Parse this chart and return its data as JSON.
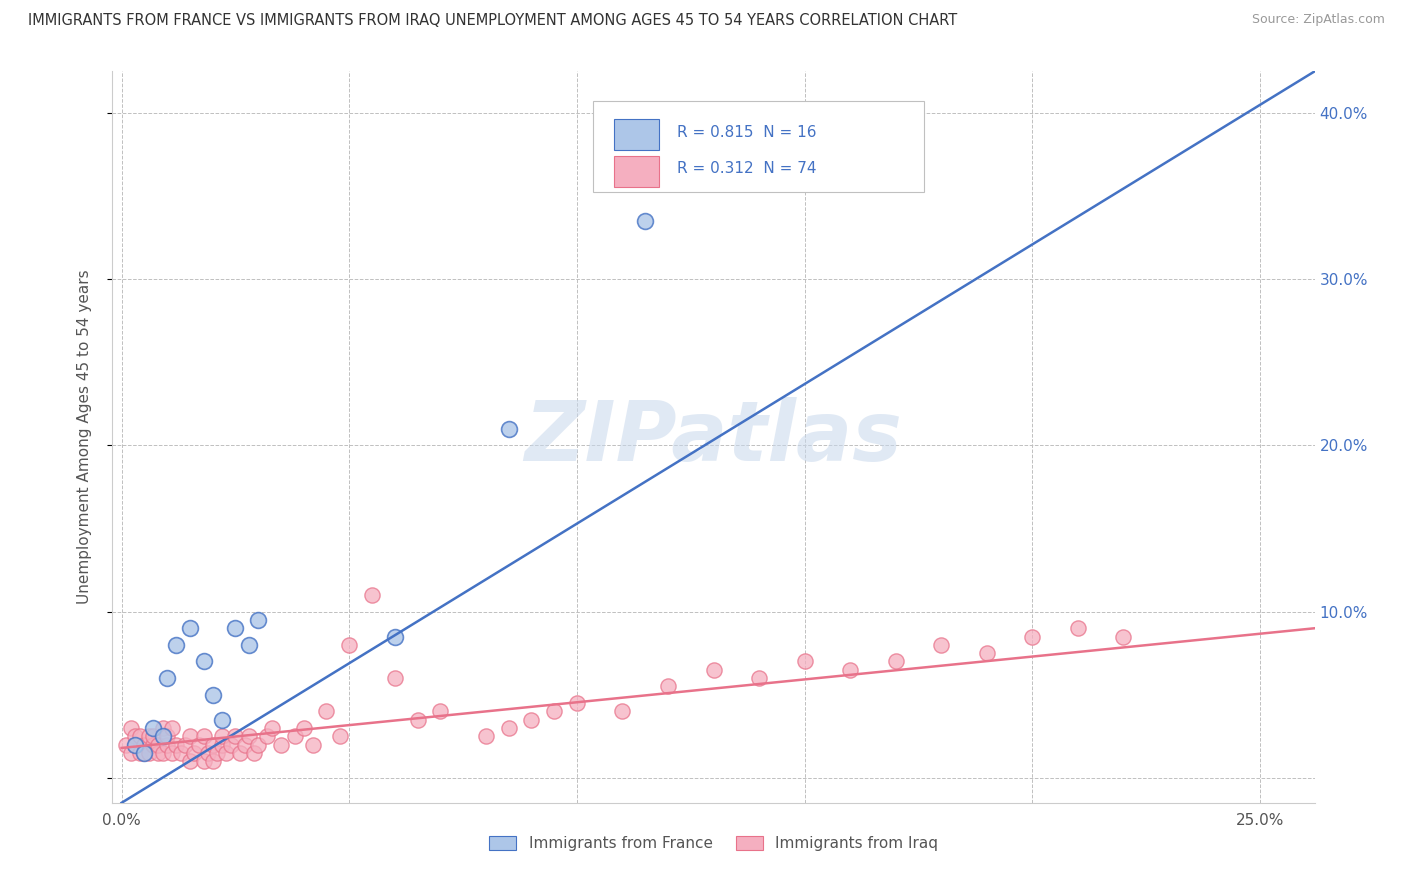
{
  "title": "IMMIGRANTS FROM FRANCE VS IMMIGRANTS FROM IRAQ UNEMPLOYMENT AMONG AGES 45 TO 54 YEARS CORRELATION CHART",
  "source": "Source: ZipAtlas.com",
  "ylabel": "Unemployment Among Ages 45 to 54 years",
  "xlim": [
    -0.002,
    0.262
  ],
  "ylim": [
    -0.015,
    0.425
  ],
  "france_R": 0.815,
  "france_N": 16,
  "iraq_R": 0.312,
  "iraq_N": 74,
  "france_color": "#adc6e8",
  "iraq_color": "#f5afc0",
  "france_line_color": "#4472c4",
  "iraq_line_color": "#e8728a",
  "france_edge_color": "#4472c4",
  "iraq_edge_color": "#e8728a",
  "legend_france": "Immigrants from France",
  "legend_iraq": "Immigrants from Iraq",
  "france_trend_x": [
    0.0,
    0.262
  ],
  "france_trend_y": [
    -0.015,
    0.425
  ],
  "iraq_trend_x": [
    0.0,
    0.262
  ],
  "iraq_trend_y": [
    0.018,
    0.09
  ],
  "france_scatter_x": [
    0.003,
    0.005,
    0.007,
    0.009,
    0.01,
    0.012,
    0.015,
    0.018,
    0.02,
    0.022,
    0.025,
    0.028,
    0.03,
    0.115,
    0.085,
    0.06
  ],
  "france_scatter_y": [
    0.02,
    0.015,
    0.03,
    0.025,
    0.06,
    0.08,
    0.09,
    0.07,
    0.05,
    0.035,
    0.09,
    0.08,
    0.095,
    0.335,
    0.21,
    0.085
  ],
  "iraq_scatter_x": [
    0.001,
    0.002,
    0.002,
    0.003,
    0.003,
    0.004,
    0.004,
    0.005,
    0.005,
    0.006,
    0.006,
    0.007,
    0.007,
    0.008,
    0.008,
    0.009,
    0.009,
    0.01,
    0.01,
    0.011,
    0.011,
    0.012,
    0.013,
    0.014,
    0.015,
    0.015,
    0.016,
    0.017,
    0.018,
    0.018,
    0.019,
    0.02,
    0.02,
    0.021,
    0.022,
    0.022,
    0.023,
    0.024,
    0.025,
    0.026,
    0.027,
    0.028,
    0.029,
    0.03,
    0.032,
    0.033,
    0.035,
    0.038,
    0.04,
    0.042,
    0.045,
    0.048,
    0.05,
    0.055,
    0.06,
    0.065,
    0.07,
    0.08,
    0.085,
    0.09,
    0.095,
    0.1,
    0.11,
    0.12,
    0.13,
    0.14,
    0.15,
    0.16,
    0.17,
    0.18,
    0.19,
    0.2,
    0.21,
    0.22
  ],
  "iraq_scatter_y": [
    0.02,
    0.015,
    0.03,
    0.025,
    0.02,
    0.015,
    0.025,
    0.02,
    0.015,
    0.025,
    0.015,
    0.02,
    0.025,
    0.015,
    0.02,
    0.03,
    0.015,
    0.02,
    0.025,
    0.015,
    0.03,
    0.02,
    0.015,
    0.02,
    0.025,
    0.01,
    0.015,
    0.02,
    0.025,
    0.01,
    0.015,
    0.02,
    0.01,
    0.015,
    0.02,
    0.025,
    0.015,
    0.02,
    0.025,
    0.015,
    0.02,
    0.025,
    0.015,
    0.02,
    0.025,
    0.03,
    0.02,
    0.025,
    0.03,
    0.02,
    0.04,
    0.025,
    0.08,
    0.11,
    0.06,
    0.035,
    0.04,
    0.025,
    0.03,
    0.035,
    0.04,
    0.045,
    0.04,
    0.055,
    0.065,
    0.06,
    0.07,
    0.065,
    0.07,
    0.08,
    0.075,
    0.085,
    0.09,
    0.085
  ],
  "y_ticks": [
    0.0,
    0.1,
    0.2,
    0.3,
    0.4
  ],
  "y_right_labels": [
    "",
    "10.0%",
    "20.0%",
    "30.0%",
    "40.0%"
  ],
  "x_ticks": [
    0.0,
    0.05,
    0.1,
    0.15,
    0.2,
    0.25
  ],
  "x_labels": [
    "0.0%",
    "",
    "",
    "",
    "",
    "25.0%"
  ]
}
